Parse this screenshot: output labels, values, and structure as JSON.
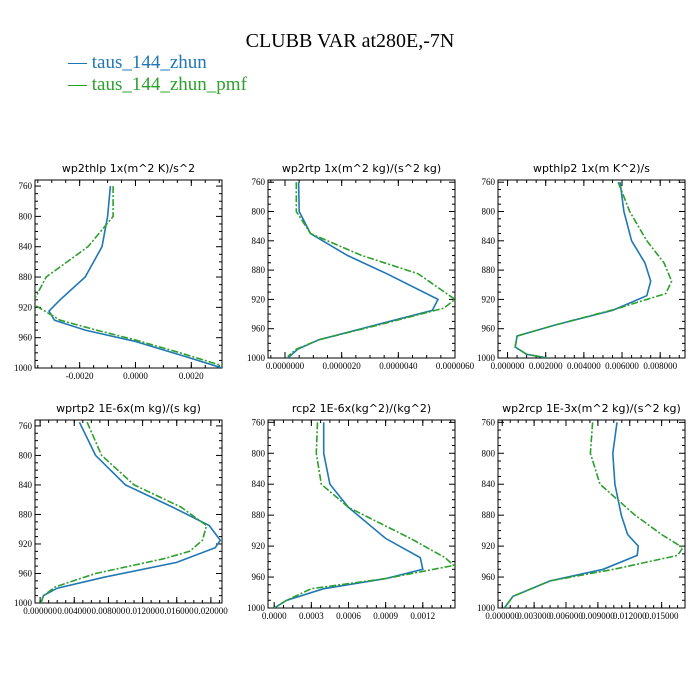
{
  "title": "CLUBB VAR at280E,-7N",
  "legend": [
    {
      "label": "taus_144_zhun",
      "color": "#1f77b4",
      "dash": "solid"
    },
    {
      "label": "taus_144_zhun_pmf",
      "color": "#2ca02c",
      "dash": "dashdot"
    }
  ],
  "chart_data": [
    {
      "type": "line",
      "title": "wp2thlp  1x(m^2 K)/s^2",
      "xlim": [
        -0.0036,
        0.0031
      ],
      "ylim": [
        1000,
        752
      ],
      "xticks": [
        -0.002,
        0.0,
        0.002
      ],
      "xtick_labels": [
        "-0.0020",
        "0.0000",
        "0.0020"
      ],
      "yticks": [
        760,
        800,
        840,
        880,
        920,
        960,
        1000
      ],
      "series": [
        {
          "name": "taus_144_zhun",
          "x": [
            -0.0009,
            -0.001,
            -0.0012,
            -0.0018,
            -0.0027,
            -0.0031,
            -0.0029,
            -0.0018,
            0.0,
            0.0018,
            0.0031
          ],
          "y": [
            760,
            800,
            840,
            880,
            910,
            925,
            937,
            950,
            965,
            985,
            1000
          ]
        },
        {
          "name": "taus_144_zhun_pmf",
          "x": [
            -0.0008,
            -0.0008,
            -0.0017,
            -0.0032,
            -0.0037,
            -0.0027,
            -0.0014,
            0.0,
            0.0016,
            0.0031
          ],
          "y": [
            760,
            800,
            840,
            880,
            915,
            937,
            950,
            963,
            980,
            997
          ]
        }
      ]
    },
    {
      "type": "line",
      "title": "wp2rtp  1x(m^2 kg)/(s^2 kg)",
      "xlim": [
        -6e-07,
        6e-06
      ],
      "ylim": [
        1000,
        757
      ],
      "xticks": [
        0.0,
        2e-06,
        4e-06,
        6e-06
      ],
      "xtick_labels": [
        "0.0000000",
        "0.0000020",
        "0.0000040",
        "0.0000060"
      ],
      "yticks": [
        760,
        800,
        840,
        880,
        920,
        960,
        1000
      ],
      "series": [
        {
          "name": "taus_144_zhun",
          "x": [
            4.8e-07,
            5e-07,
            9e-07,
            2.2e-06,
            3.6e-06,
            5.4e-06,
            5.2e-06,
            3.2e-06,
            1.2e-06,
            4.5e-07,
            1e-07
          ],
          "y": [
            760,
            800,
            830,
            860,
            885,
            920,
            935,
            955,
            975,
            988,
            1000
          ]
        },
        {
          "name": "taus_144_zhun_pmf",
          "x": [
            4e-07,
            4e-07,
            9e-07,
            2.7e-06,
            4.7e-06,
            6e-06,
            5.6e-06,
            3.3e-06,
            1.2e-06,
            4e-07,
            1e-07
          ],
          "y": [
            760,
            800,
            830,
            860,
            885,
            920,
            932,
            955,
            975,
            988,
            998
          ]
        }
      ]
    },
    {
      "type": "line",
      "title": "wpthlp2  1x(m K^2)/s",
      "xlim": [
        -0.0005,
        0.0093
      ],
      "ylim": [
        1000,
        757
      ],
      "xticks": [
        0.0,
        0.002,
        0.004,
        0.006,
        0.008
      ],
      "xtick_labels": [
        "0.000000",
        "0.002000",
        "0.004000",
        "0.006000",
        "0.008000"
      ],
      "yticks": [
        760,
        800,
        840,
        880,
        920,
        960,
        1000
      ],
      "series": [
        {
          "name": "taus_144_zhun",
          "x": [
            0.0059,
            0.0061,
            0.0065,
            0.0072,
            0.0075,
            0.0073,
            0.0055,
            0.0025,
            0.0005,
            0.0004,
            0.001,
            0.0021
          ],
          "y": [
            760,
            800,
            840,
            870,
            895,
            915,
            935,
            955,
            970,
            985,
            995,
            1000
          ]
        },
        {
          "name": "taus_144_zhun_pmf",
          "x": [
            0.0058,
            0.0064,
            0.0073,
            0.0082,
            0.0086,
            0.0083,
            0.0057,
            0.0025,
            0.0005,
            0.0004,
            0.001,
            0.0021
          ],
          "y": [
            760,
            800,
            840,
            870,
            895,
            912,
            933,
            955,
            970,
            985,
            995,
            1000
          ]
        }
      ]
    },
    {
      "type": "line",
      "title": "wprtp2   1E-6x(m kg)/(s kg)",
      "xlim": [
        -0.0006,
        0.0213
      ],
      "ylim": [
        1000,
        752
      ],
      "xticks": [
        0.0,
        0.004,
        0.008,
        0.012,
        0.016,
        0.02
      ],
      "xtick_labels": [
        "0.000000",
        "0.004000",
        "0.008000",
        "0.012000",
        "0.016000",
        "0.020000"
      ],
      "yticks": [
        760,
        800,
        840,
        880,
        920,
        960,
        1000
      ],
      "series": [
        {
          "name": "taus_144_zhun",
          "x": [
            0.0046,
            0.0065,
            0.01,
            0.0155,
            0.0198,
            0.0211,
            0.0205,
            0.016,
            0.0075,
            0.002,
            0.0004,
            0.0001
          ],
          "y": [
            755,
            800,
            840,
            870,
            895,
            915,
            925,
            945,
            965,
            980,
            990,
            1000
          ]
        },
        {
          "name": "taus_144_zhun_pmf",
          "x": [
            0.0055,
            0.0072,
            0.011,
            0.0165,
            0.0195,
            0.019,
            0.0175,
            0.0145,
            0.0065,
            0.0018,
            0.0004,
            0.0001
          ],
          "y": [
            755,
            800,
            840,
            870,
            895,
            915,
            930,
            940,
            960,
            978,
            990,
            1000
          ]
        }
      ]
    },
    {
      "type": "line",
      "title": "rcp2   1E-6x(kg^2)/(kg^2)",
      "xlim": [
        -5e-05,
        0.00146
      ],
      "ylim": [
        1000,
        757
      ],
      "xticks": [
        0.0,
        0.0003,
        0.0006,
        0.0009,
        0.0012
      ],
      "xtick_labels": [
        "0.0000",
        "0.0003",
        "0.0006",
        "0.0009",
        "0.0012"
      ],
      "yticks": [
        760,
        800,
        840,
        880,
        920,
        960,
        1000
      ],
      "series": [
        {
          "name": "taus_144_zhun",
          "x": [
            0.0004,
            0.0004,
            0.00045,
            0.0006,
            0.0009,
            0.00118,
            0.0012,
            0.0009,
            0.0004,
            0.0001,
            0.0
          ],
          "y": [
            760,
            800,
            840,
            870,
            910,
            935,
            950,
            962,
            975,
            990,
            1000
          ]
        },
        {
          "name": "taus_144_zhun_pmf",
          "x": [
            0.00035,
            0.00034,
            0.00038,
            0.0006,
            0.0011,
            0.00138,
            0.00145,
            0.0009,
            0.0003,
            0.0001,
            0.0
          ],
          "y": [
            760,
            800,
            840,
            870,
            910,
            935,
            945,
            962,
            975,
            990,
            1000
          ]
        }
      ]
    },
    {
      "type": "line",
      "title": "wp2rcp   1E-3x(m^2 kg)/(s^2 kg)",
      "xlim": [
        -0.0004,
        0.0172
      ],
      "ylim": [
        1000,
        757
      ],
      "xticks": [
        0.0,
        0.003,
        0.006,
        0.009,
        0.012,
        0.015
      ],
      "xtick_labels": [
        "0.000000",
        "0.003000",
        "0.006000",
        "0.009000",
        "0.012000",
        "0.015000"
      ],
      "yticks": [
        760,
        800,
        840,
        880,
        920,
        960,
        1000
      ],
      "series": [
        {
          "name": "taus_144_zhun",
          "x": [
            0.0108,
            0.0104,
            0.0106,
            0.0112,
            0.0118,
            0.0128,
            0.0127,
            0.0095,
            0.0045,
            0.001,
            0.0002
          ],
          "y": [
            760,
            800,
            840,
            880,
            905,
            920,
            932,
            950,
            965,
            985,
            1000
          ]
        },
        {
          "name": "taus_144_zhun_pmf",
          "x": [
            0.0085,
            0.0083,
            0.0092,
            0.0125,
            0.015,
            0.017,
            0.0165,
            0.0105,
            0.0045,
            0.001,
            0.0002
          ],
          "y": [
            760,
            800,
            840,
            880,
            905,
            922,
            932,
            950,
            965,
            985,
            1000
          ]
        }
      ]
    }
  ]
}
